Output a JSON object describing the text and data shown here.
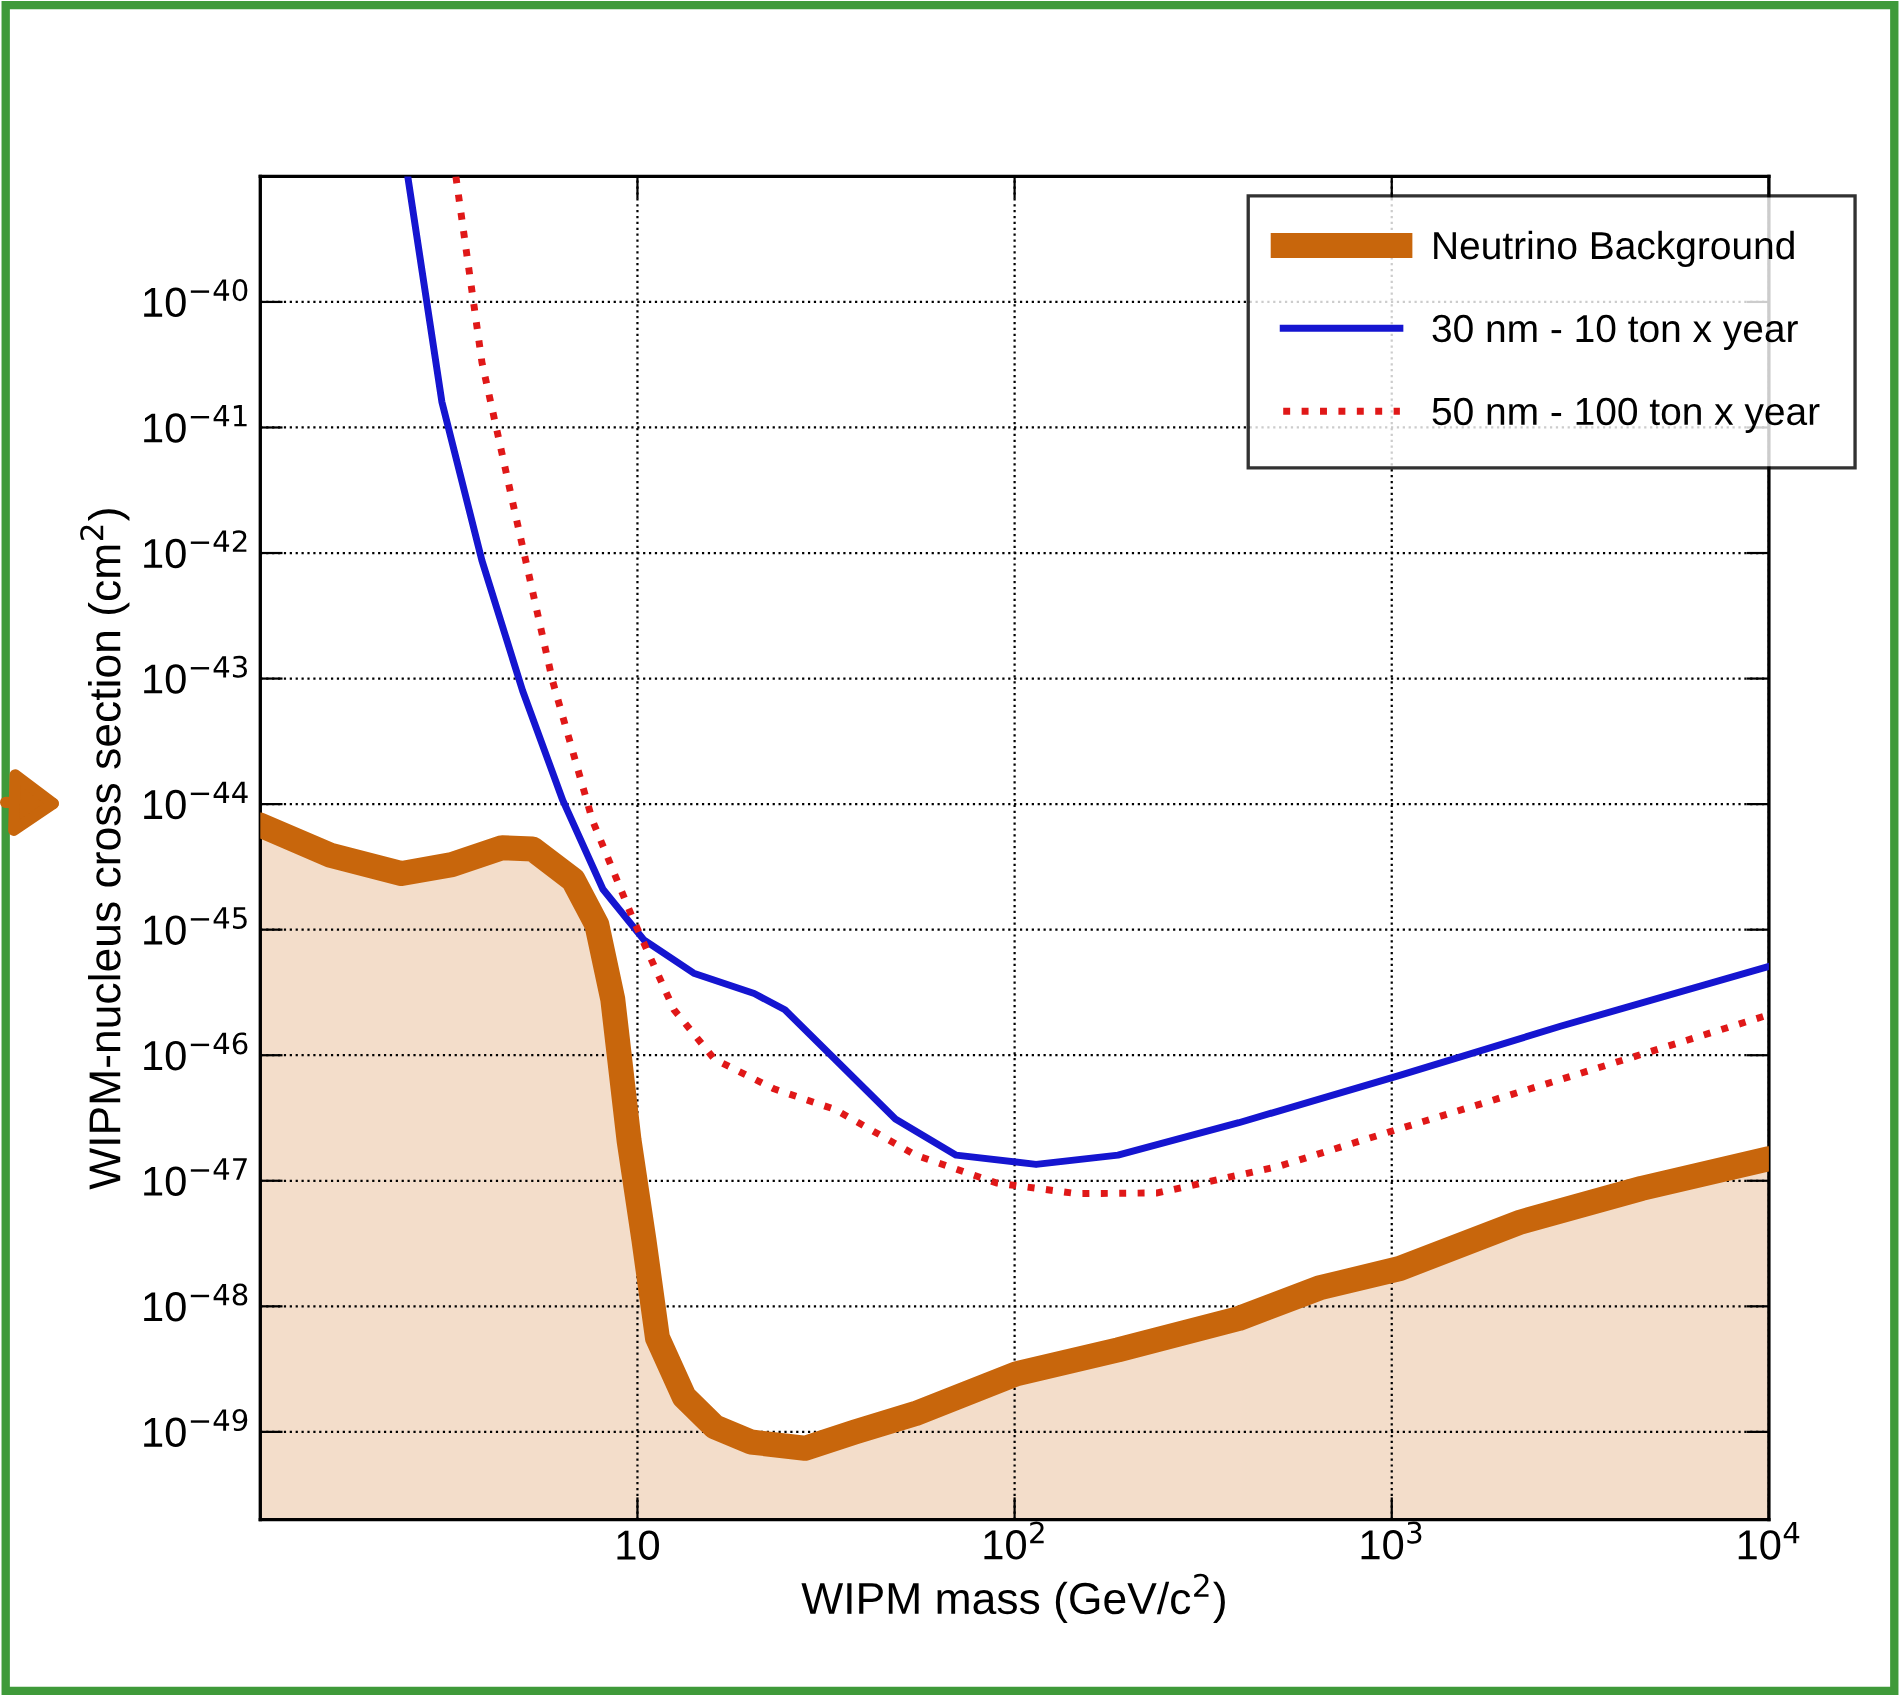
{
  "chart_data": {
    "type": "line",
    "xlabel": "WIPM mass (GeV/c$^{2}$)",
    "ylabel": "WIPM-nucleus cross section (cm$^{2}$)",
    "log": "xy",
    "xlim": [
      1,
      10000
    ],
    "ylim": [
      2e-50,
      1e-39
    ],
    "xticks": [
      10,
      {
        "value": 100,
        "label": "10$^{2}$"
      },
      {
        "value": 1000,
        "label": "10$^{3}$"
      },
      {
        "value": 10000,
        "label": "10$^{4}$"
      }
    ],
    "yticks": [
      {
        "value": 1e-40,
        "label": "10$^{−40}$"
      },
      {
        "value": 1e-41,
        "label": "10$^{−41}$"
      },
      {
        "value": 1e-42,
        "label": "10$^{−42}$"
      },
      {
        "value": 1e-43,
        "label": "10$^{−43}$"
      },
      {
        "value": 1e-44,
        "label": "10$^{−44}$"
      },
      {
        "value": 1e-45,
        "label": "10$^{−45}$"
      },
      {
        "value": 1e-46,
        "label": "10$^{−46}$"
      },
      {
        "value": 1e-47,
        "label": "10$^{−47}$"
      },
      {
        "value": 1e-48,
        "label": "10$^{−48}$"
      },
      {
        "value": 1e-49,
        "label": "10$^{−49}$"
      }
    ],
    "grid": true,
    "legend": "top right",
    "series": [
      {
        "name": "Neutrino Background",
        "type": "area",
        "color": "#c8660c",
        "line_style": "solid",
        "x": [
          1,
          1.54,
          2.37,
          3.22,
          4.38,
          5.27,
          6.75,
          7.8,
          8.6,
          9.5,
          10.4,
          11.3,
          13.3,
          16,
          20,
          27.8,
          37.8,
          54.6,
          101,
          188,
          393,
          642,
          1050,
          2200,
          4600,
          10000
        ],
        "values": [
          6.8e-45,
          3.9e-45,
          2.8e-45,
          3.3e-45,
          4.5e-45,
          4.4e-45,
          2.5e-45,
          1.1e-45,
          2.8e-46,
          2.1e-47,
          3.4e-48,
          5.6e-49,
          1.9e-49,
          1.1e-49,
          8.3e-50,
          7.4e-50,
          1e-49,
          1.4e-49,
          2.9e-49,
          4.5e-49,
          8e-49,
          1.4e-48,
          2e-48,
          4.7e-48,
          8.7e-48,
          1.5e-47
        ]
      },
      {
        "name": "30 nm - 10 ton x year",
        "color": "#1515d0",
        "line_style": "solid",
        "x": [
          2.46,
          3.03,
          3.87,
          4.96,
          6.34,
          8.1,
          10.4,
          14.1,
          20.4,
          24.6,
          33.4,
          48.3,
          70,
          114,
          188,
          393,
          1050,
          2800,
          10000
        ],
        "values": [
          1e-39,
          1.6e-41,
          8.7e-43,
          8e-44,
          1.07e-44,
          2.1e-45,
          8.3e-46,
          4.5e-46,
          3.1e-46,
          2.3e-46,
          9.3e-47,
          3.1e-47,
          1.6e-47,
          1.35e-47,
          1.6e-47,
          2.9e-47,
          6.9e-47,
          1.7e-46,
          5.1e-46
        ]
      },
      {
        "name": "50 nm - 100 ton x year",
        "color": "#e01818",
        "line_style": "dotted",
        "x": [
          3.3,
          3.87,
          4.66,
          5.96,
          7.6,
          9.75,
          12.5,
          16,
          23,
          33.4,
          54.6,
          89.6,
          146,
          239,
          500,
          1050,
          2800,
          10000
        ],
        "values": [
          1e-39,
          3.3e-41,
          2.6e-42,
          9.5e-44,
          7.4e-45,
          1.2e-45,
          2.3e-46,
          9.3e-47,
          5.4e-47,
          3.7e-47,
          1.6e-47,
          9.6e-48,
          7.9e-48,
          8e-48,
          1.3e-47,
          2.6e-47,
          6.4e-47,
          2.1e-46
        ]
      }
    ]
  }
}
